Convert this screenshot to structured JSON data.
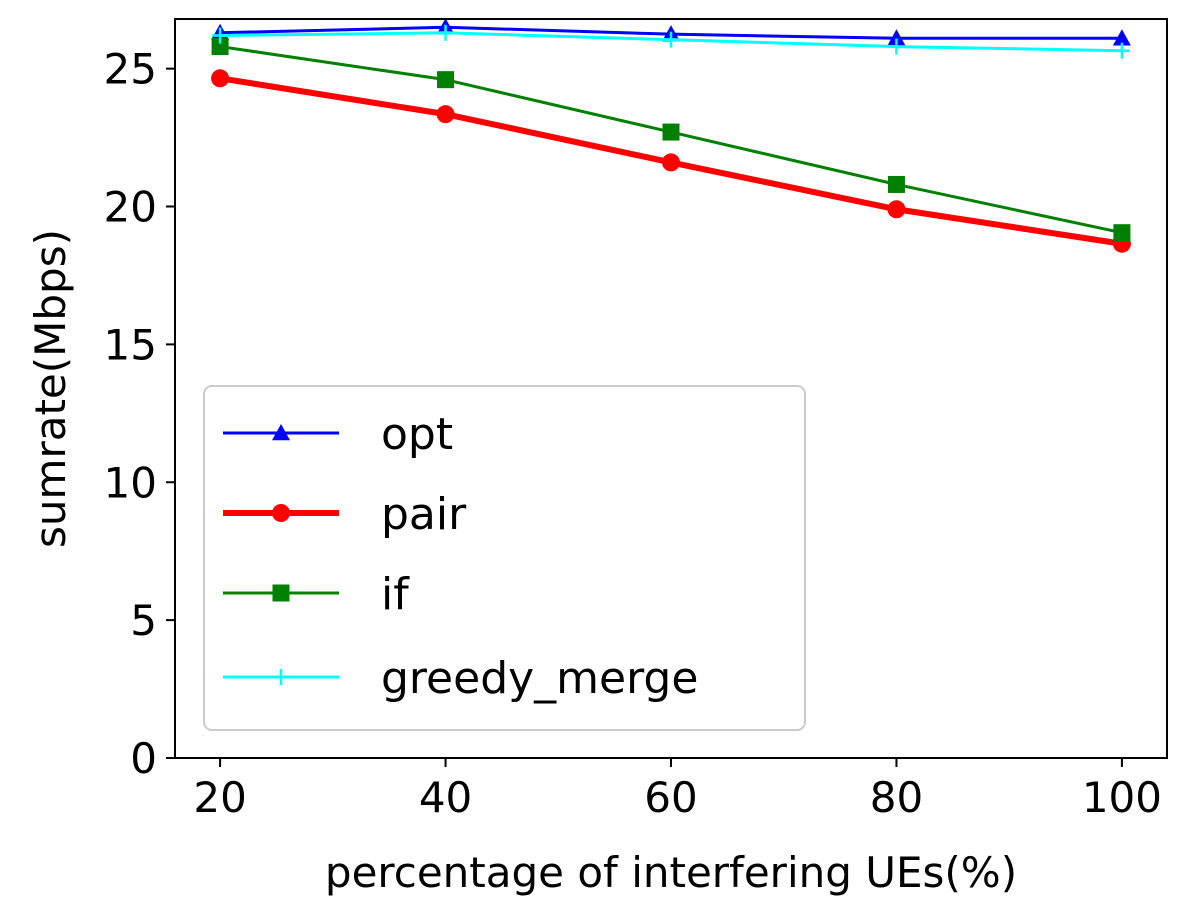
{
  "chart_data": {
    "type": "line",
    "title": "",
    "xlabel": "percentage of interfering UEs(%)",
    "ylabel": "sumrate(Mbps)",
    "x": [
      20,
      40,
      60,
      80,
      100
    ],
    "xticks": [
      "20",
      "40",
      "60",
      "80",
      "100"
    ],
    "yticks": [
      "0",
      "5",
      "10",
      "15",
      "20",
      "25"
    ],
    "xlim": [
      16,
      104
    ],
    "ylim": [
      0,
      26.8
    ],
    "grid": false,
    "legend_position": "lower-left",
    "series": [
      {
        "name": "opt",
        "values": [
          26.3,
          26.5,
          26.25,
          26.1,
          26.1
        ],
        "color": "#0000ff",
        "marker": "triangle",
        "line_width": "thin"
      },
      {
        "name": "pair",
        "values": [
          24.65,
          23.35,
          21.6,
          19.9,
          18.65
        ],
        "color": "#ff0000",
        "marker": "circle",
        "line_width": "thick"
      },
      {
        "name": "if",
        "values": [
          25.8,
          24.6,
          22.7,
          20.8,
          19.05
        ],
        "color": "#008000",
        "marker": "square",
        "line_width": "thin"
      },
      {
        "name": "greedy_merge",
        "values": [
          26.2,
          26.3,
          26.05,
          25.8,
          25.65
        ],
        "color": "#00ffff",
        "marker": "plus",
        "line_width": "thin"
      }
    ]
  }
}
